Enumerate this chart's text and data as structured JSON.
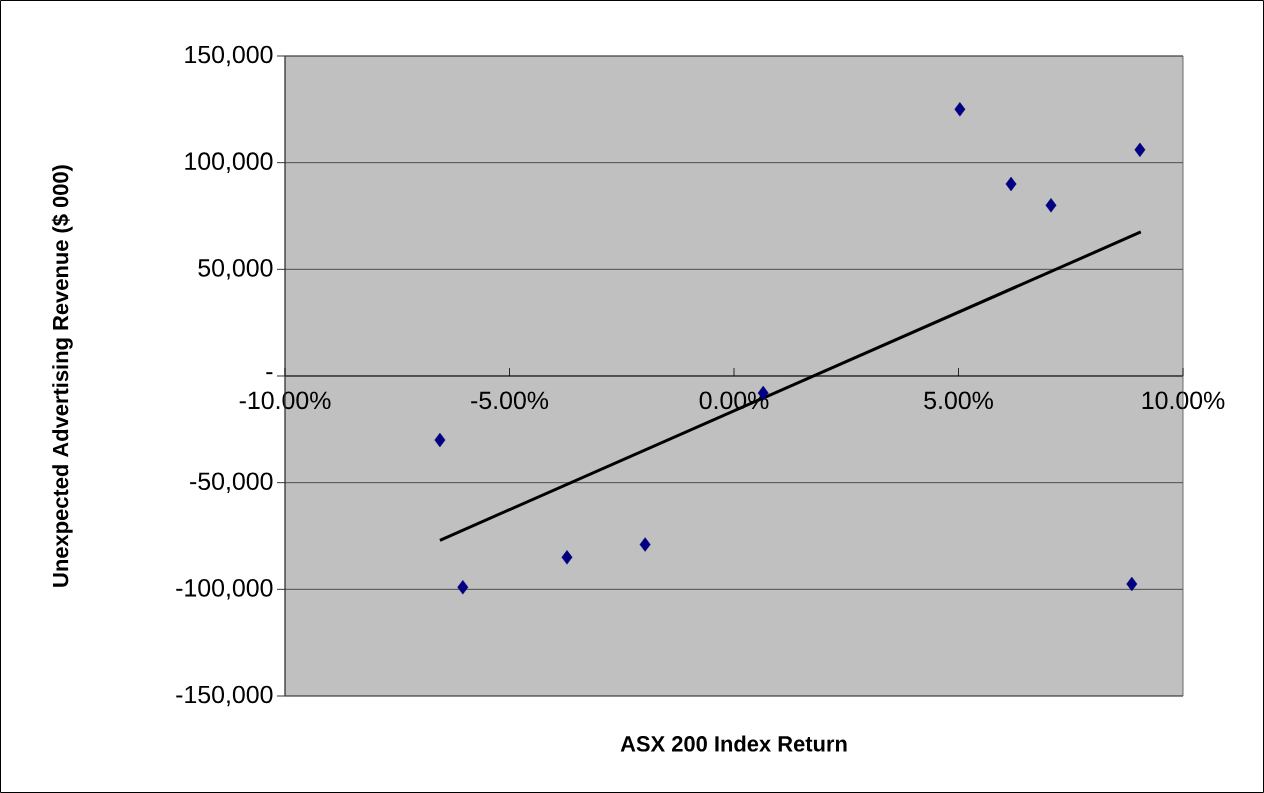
{
  "chart_data": {
    "type": "scatter",
    "xlabel": "ASX 200 Index Return",
    "ylabel": "Unexpected Advertising Revenue ($ 000)",
    "xlim": [
      -10,
      10
    ],
    "xticks": [
      {
        "value": -10,
        "label": "-10.00%"
      },
      {
        "value": -5,
        "label": "-5.00%"
      },
      {
        "value": 0,
        "label": "0.00%"
      },
      {
        "value": 5,
        "label": "5.00%"
      },
      {
        "value": 10,
        "label": "10.00%"
      }
    ],
    "ylim": [
      -150000,
      150000
    ],
    "yticks": [
      {
        "value": -150000,
        "label": "-150,000"
      },
      {
        "value": -100000,
        "label": "-100,000"
      },
      {
        "value": -50000,
        "label": "-50,000"
      },
      {
        "value": 0,
        "label": "-"
      },
      {
        "value": 50000,
        "label": "50,000"
      },
      {
        "value": 100000,
        "label": "100,000"
      },
      {
        "value": 150000,
        "label": "150,000"
      }
    ],
    "grid": "y",
    "marker": "diamond",
    "series": [
      {
        "color": "#000080",
        "x": [
          -6.55,
          -6.04,
          -3.72,
          -1.98,
          0.65,
          5.03,
          6.17,
          7.06,
          9.04,
          8.86
        ],
        "values": [
          -30000,
          -99000,
          -85000,
          -79000,
          -8000,
          125000,
          90000,
          80000,
          106000,
          -97500
        ]
      },
      {
        "type": "line",
        "marker": "none",
        "color": "#000000",
        "x": [
          -6.55,
          9.06
        ],
        "values": [
          -77000,
          67500
        ]
      }
    ]
  }
}
